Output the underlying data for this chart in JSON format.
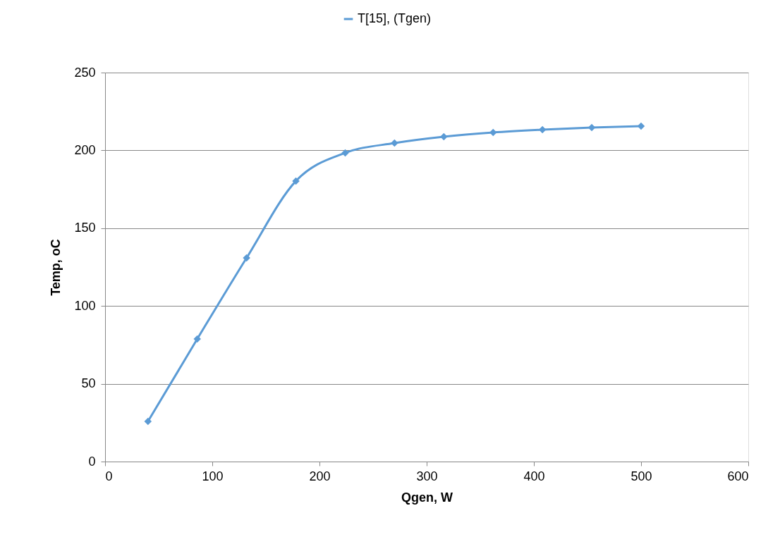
{
  "chart_data": {
    "type": "line",
    "xlabel": "Qgen, W",
    "ylabel": "Temp, oC",
    "x": [
      40,
      86,
      132,
      178,
      224,
      270,
      316,
      362,
      408,
      454,
      500
    ],
    "series": [
      {
        "name": "T[15], (Tgen)",
        "color": "#5b9bd5",
        "values": [
          25.8,
          78.8,
          130.9,
          180.3,
          198.4,
          204.7,
          208.8,
          211.5,
          213.3,
          214.7,
          215.6
        ]
      }
    ],
    "xlim": [
      0,
      600
    ],
    "xticks": [
      0,
      100,
      200,
      300,
      400,
      500,
      600
    ],
    "ylim": [
      0,
      250
    ],
    "yticks": [
      0,
      50,
      100,
      150,
      200,
      250
    ],
    "grid": "y",
    "legend": "top",
    "marker": "diamond",
    "line_style": "solid"
  }
}
